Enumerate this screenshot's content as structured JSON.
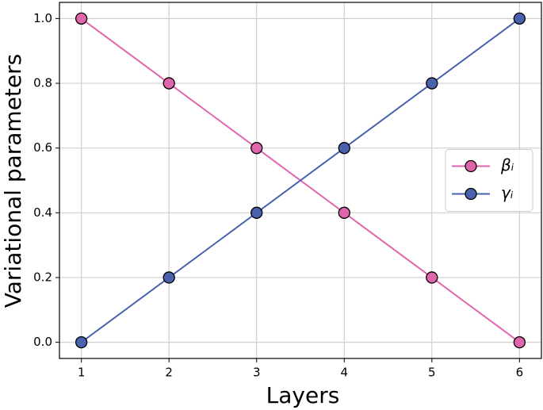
{
  "chart_data": {
    "type": "line",
    "x_label": "Layers",
    "y_label": "Variational parameters",
    "x": [
      1,
      2,
      3,
      4,
      5,
      6
    ],
    "series": [
      {
        "name": "βᵢ",
        "color": "#e066ac",
        "values": [
          1.0,
          0.8,
          0.6,
          0.4,
          0.2,
          0.0
        ]
      },
      {
        "name": "γᵢ",
        "color": "#4a62ae",
        "values": [
          0.0,
          0.2,
          0.4,
          0.6,
          0.8,
          1.0
        ]
      }
    ],
    "xlim": [
      0.75,
      6.25
    ],
    "ylim": [
      -0.05,
      1.05
    ],
    "xticks": [
      1,
      2,
      3,
      4,
      5,
      6
    ],
    "yticks": [
      {
        "value": 0,
        "label": "0.0"
      },
      0.2,
      0.4,
      0.6,
      0.8,
      {
        "value": 1,
        "label": "1.0"
      }
    ],
    "grid": true,
    "legend": "center right"
  }
}
